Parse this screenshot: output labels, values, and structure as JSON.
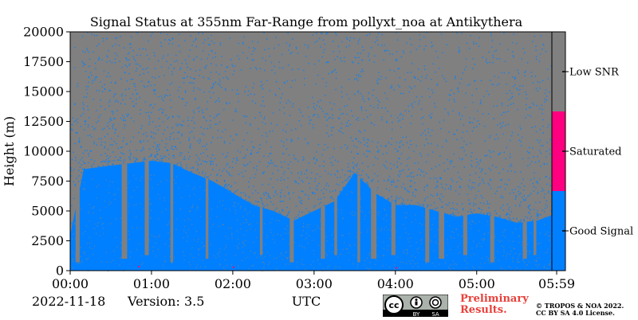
{
  "chart_data": {
    "type": "heatmap",
    "title": "Signal Status at 355nm Far-Range from pollyxt_noa at Antikythera",
    "xlabel": "UTC",
    "ylabel": "Height (m)",
    "x_range": [
      "00:00",
      "05:59"
    ],
    "x_ticks": [
      "00:00",
      "01:00",
      "02:00",
      "03:00",
      "04:00",
      "05:00",
      "05:59"
    ],
    "x_tick_minutes": [
      0,
      60,
      120,
      180,
      240,
      300,
      359
    ],
    "ylim": [
      0,
      20000
    ],
    "y_ticks": [
      0,
      2500,
      5000,
      7500,
      10000,
      12500,
      15000,
      17500,
      20000
    ],
    "y_tick_labels": [
      "0",
      "2500",
      "5000",
      "7500",
      "10000",
      "12500",
      "15000",
      "17500",
      "20000"
    ],
    "categories": [
      {
        "label": "Good Signal",
        "color": "#0080ff"
      },
      {
        "label": "Saturated",
        "color": "#ff0080"
      },
      {
        "label": "Low SNR",
        "color": "#808080"
      }
    ],
    "good_signal_top_profile": {
      "unit_x": "minutes",
      "unit_y": "m",
      "points": [
        [
          0,
          3000
        ],
        [
          10,
          8500
        ],
        [
          30,
          8800
        ],
        [
          45,
          9000
        ],
        [
          60,
          9200
        ],
        [
          75,
          9000
        ],
        [
          90,
          8200
        ],
        [
          105,
          7500
        ],
        [
          120,
          6500
        ],
        [
          135,
          5500
        ],
        [
          150,
          5000
        ],
        [
          165,
          4200
        ],
        [
          180,
          5000
        ],
        [
          195,
          5800
        ],
        [
          210,
          8200
        ],
        [
          225,
          6500
        ],
        [
          240,
          5500
        ],
        [
          255,
          5500
        ],
        [
          270,
          5000
        ],
        [
          285,
          4500
        ],
        [
          300,
          4800
        ],
        [
          315,
          4500
        ],
        [
          330,
          4000
        ],
        [
          345,
          4200
        ],
        [
          359,
          4800
        ]
      ]
    },
    "low_snr_gaps_minutes": [
      [
        4,
        7
      ],
      [
        38,
        42
      ],
      [
        55,
        58
      ],
      [
        74,
        76
      ],
      [
        100,
        102
      ],
      [
        140,
        142
      ],
      [
        162,
        165
      ],
      [
        185,
        188
      ],
      [
        195,
        197
      ],
      [
        212,
        214
      ],
      [
        222,
        226
      ],
      [
        237,
        240
      ],
      [
        262,
        265
      ],
      [
        272,
        276
      ],
      [
        290,
        293
      ],
      [
        310,
        313
      ],
      [
        334,
        337
      ],
      [
        342,
        344
      ]
    ]
  },
  "date": "2022-11-18",
  "version": "Version: 3.5",
  "preliminary_line1": "Preliminary",
  "preliminary_line2": "Results.",
  "copyright_line1": "© TROPOS & NOA 2022.",
  "copyright_line2": "CC BY SA 4.0 License.",
  "license_badge": {
    "cc": "cc",
    "by": "BY",
    "sa": "SA"
  }
}
